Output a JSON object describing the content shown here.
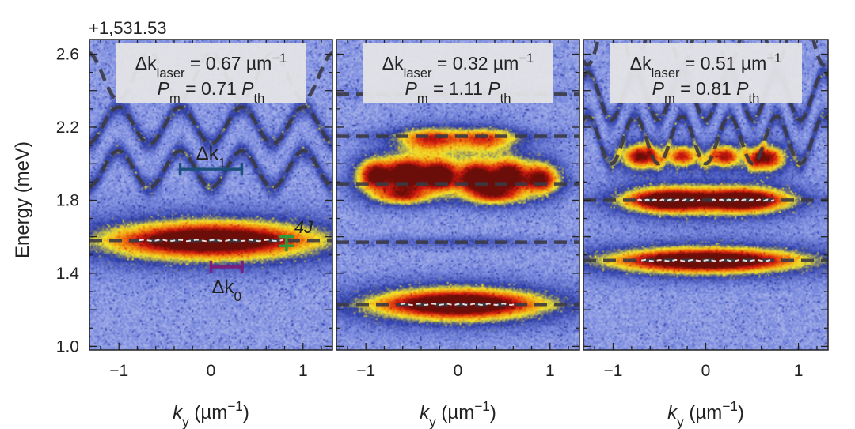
{
  "chart_data": {
    "type": "heatmap",
    "y_offset_label": "+1,531.53",
    "ylabel": "Energy (meV)",
    "ylim": [
      0.98,
      2.68
    ],
    "yticks": [
      "1.0",
      "1.4",
      "1.8",
      "2.2",
      "2.6"
    ],
    "ytick_values": [
      1.0,
      1.4,
      1.8,
      2.2,
      2.6
    ],
    "xlim": [
      -1.32,
      1.32
    ],
    "xticks": [
      "−1",
      "0",
      "1"
    ],
    "xtick_values": [
      -1,
      0,
      1
    ],
    "xlabel_main": "k",
    "xlabel_sub": "y",
    "xlabel_unit": " (µm",
    "xlabel_exp": "−1",
    "xlabel_close": ")",
    "colormap": [
      "#e9ecf7",
      "#7d8de0",
      "#2b3aa6",
      "#f2e72b",
      "#f0850f",
      "#d41a10",
      "#6b0d08"
    ],
    "dashed_line_color": "#3a3a44",
    "panels": [
      {
        "dk_symbol": "Δk",
        "dk_sub": "laser",
        "dk_value": " = 0.67 µm",
        "dk_exp": "−1",
        "p_symbol": "P",
        "p_sub": "m",
        "p_value": " = 0.71 ",
        "p_ref": "P",
        "p_ref_sub": "th",
        "flat_bands": [
          1.58
        ],
        "upper_period": 0.67,
        "upper_min": 1.87,
        "upper_max": 2.07,
        "modes": [
          {
            "x": 0.0,
            "y": 1.58,
            "wx": 0.65,
            "wy": 0.06,
            "amp": 1.0
          }
        ],
        "annotations": {
          "dk1_symbol": "Δk",
          "dk1_sub": "1",
          "dk1_color": "#1d4f7a",
          "dk0_symbol": "Δk",
          "dk0_sub": "0",
          "dk0_color": "#7a1f7a",
          "j_label": "4J",
          "j_color": "#2e9a3a"
        }
      },
      {
        "dk_symbol": "Δk",
        "dk_sub": "laser",
        "dk_value": " = 0.32 µm",
        "dk_exp": "−1",
        "p_symbol": "P",
        "p_sub": "m",
        "p_value": " = 1.11 ",
        "p_ref": "P",
        "p_ref_sub": "th",
        "flat_bands": [
          1.23,
          1.57,
          1.89,
          2.15,
          2.38
        ],
        "modes": [
          {
            "x": 0.0,
            "y": 1.23,
            "wx": 0.52,
            "wy": 0.05,
            "amp": 1.0
          },
          {
            "x": -0.9,
            "y": 1.94,
            "wx": 0.12,
            "wy": 0.05,
            "amp": 0.75
          },
          {
            "x": -0.55,
            "y": 1.95,
            "wx": 0.13,
            "wy": 0.05,
            "amp": 0.85
          },
          {
            "x": -0.2,
            "y": 1.94,
            "wx": 0.12,
            "wy": 0.05,
            "amp": 0.85
          },
          {
            "x": 0.2,
            "y": 1.93,
            "wx": 0.12,
            "wy": 0.05,
            "amp": 0.85
          },
          {
            "x": 0.55,
            "y": 1.94,
            "wx": 0.12,
            "wy": 0.05,
            "amp": 0.8
          },
          {
            "x": 0.9,
            "y": 1.92,
            "wx": 0.12,
            "wy": 0.05,
            "amp": 0.7
          },
          {
            "x": -0.6,
            "y": 1.83,
            "wx": 0.18,
            "wy": 0.03,
            "amp": 0.55
          },
          {
            "x": 0.4,
            "y": 1.83,
            "wx": 0.18,
            "wy": 0.03,
            "amp": 0.55
          },
          {
            "x": -0.3,
            "y": 2.13,
            "wx": 0.2,
            "wy": 0.04,
            "amp": 0.5
          },
          {
            "x": 0.3,
            "y": 2.13,
            "wx": 0.2,
            "wy": 0.04,
            "amp": 0.45
          }
        ]
      },
      {
        "dk_symbol": "Δk",
        "dk_sub": "laser",
        "dk_value": " = 0.51 µm",
        "dk_exp": "−1",
        "p_symbol": "P",
        "p_sub": "m",
        "p_value": " = 0.81 ",
        "p_ref": "P",
        "p_ref_sub": "th",
        "flat_bands": [
          1.47,
          1.8
        ],
        "upper_period": 0.51,
        "upper_min": 2.0,
        "upper_max": 2.26,
        "modes": [
          {
            "x": 0.0,
            "y": 1.47,
            "wx": 0.58,
            "wy": 0.04,
            "amp": 1.0
          },
          {
            "x": -0.4,
            "y": 1.8,
            "wx": 0.28,
            "wy": 0.04,
            "amp": 0.95
          },
          {
            "x": 0.4,
            "y": 1.8,
            "wx": 0.28,
            "wy": 0.04,
            "amp": 0.95
          },
          {
            "x": -0.7,
            "y": 2.04,
            "wx": 0.12,
            "wy": 0.04,
            "amp": 0.75
          },
          {
            "x": -0.25,
            "y": 2.04,
            "wx": 0.1,
            "wy": 0.035,
            "amp": 0.6
          },
          {
            "x": 0.2,
            "y": 2.04,
            "wx": 0.1,
            "wy": 0.035,
            "amp": 0.65
          },
          {
            "x": 0.65,
            "y": 2.03,
            "wx": 0.12,
            "wy": 0.04,
            "amp": 0.75
          }
        ]
      }
    ]
  }
}
